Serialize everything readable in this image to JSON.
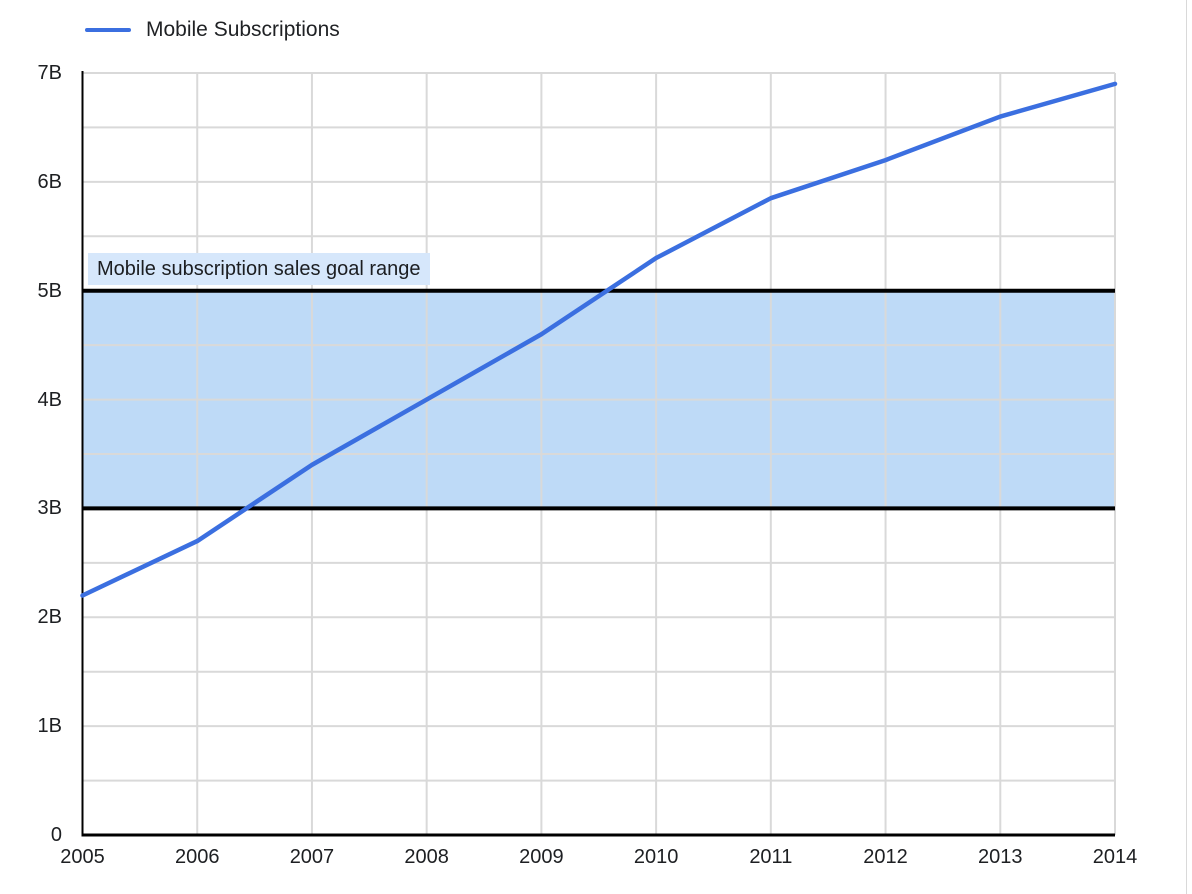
{
  "legend": {
    "series_label": "Mobile Subscriptions"
  },
  "band": {
    "label": "Mobile subscription sales goal range"
  },
  "colors": {
    "series_line": "#3b6fe0",
    "band_fill": "#bedaf7",
    "band_border": "#000000",
    "band_label_bg": "#d6e7fb",
    "gridline": "#d9d9d9",
    "axis": "#000000",
    "text": "#202124"
  },
  "chart_data": {
    "type": "line",
    "title": "",
    "x": [
      2005,
      2006,
      2007,
      2008,
      2009,
      2010,
      2011,
      2012,
      2013,
      2014
    ],
    "x_tick_labels": [
      "2005",
      "2006",
      "2007",
      "2008",
      "2009",
      "2010",
      "2011",
      "2012",
      "2013",
      "2014"
    ],
    "y_tick_values": [
      0,
      1,
      2,
      3,
      4,
      5,
      6,
      7
    ],
    "y_tick_labels": [
      "0",
      "1B",
      "2B",
      "3B",
      "4B",
      "5B",
      "6B",
      "7B"
    ],
    "ylim": [
      0,
      7
    ],
    "y_unit": "billions",
    "minor_y_grid_step": 0.5,
    "grid": true,
    "legend_position": "top-left",
    "series": [
      {
        "name": "Mobile Subscriptions",
        "values": [
          2.2,
          2.7,
          3.4,
          4.0,
          4.6,
          5.3,
          5.85,
          6.2,
          6.6,
          6.9
        ]
      }
    ],
    "annotations": [
      {
        "type": "band",
        "y_from": 3,
        "y_to": 5,
        "label": "Mobile subscription sales goal range"
      }
    ]
  }
}
